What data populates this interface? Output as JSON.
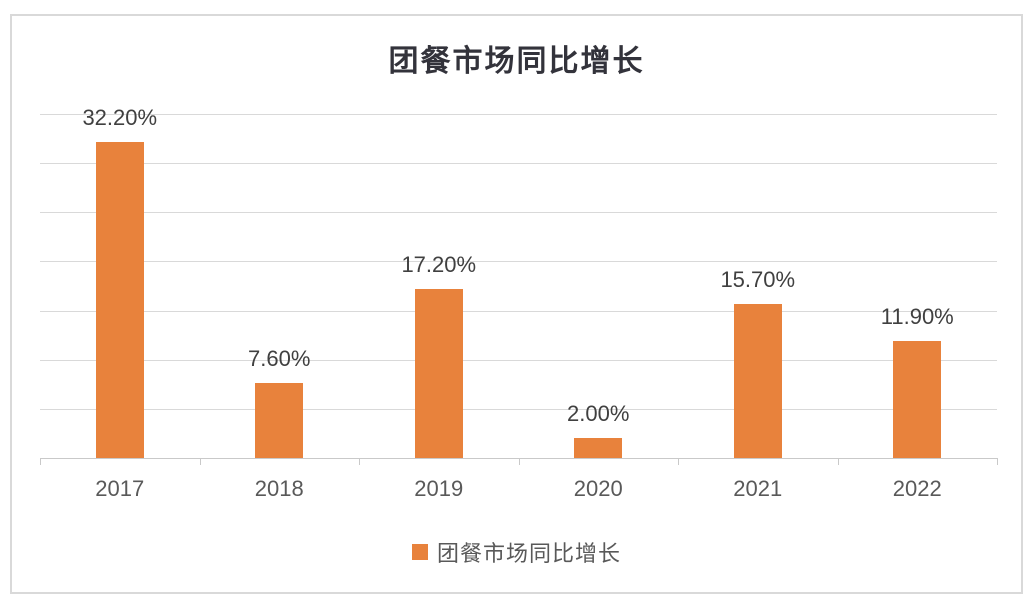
{
  "chart_data": {
    "type": "bar",
    "title": "团餐市场同比增长",
    "categories": [
      "2017",
      "2018",
      "2019",
      "2020",
      "2021",
      "2022"
    ],
    "series": [
      {
        "name": "团餐市场同比增长",
        "values": [
          32.2,
          7.6,
          17.2,
          2.0,
          15.7,
          11.9
        ],
        "labels": [
          "32.20%",
          "7.60%",
          "17.20%",
          "2.00%",
          "15.70%",
          "11.90%"
        ]
      }
    ],
    "xlabel": "",
    "ylabel": "",
    "ylim": [
      0,
      35
    ],
    "gridline_step": 5,
    "grid": true,
    "legend_position": "bottom"
  },
  "legend": {
    "label": "团餐市场同比增长"
  },
  "colors": {
    "bar": "#E8823C",
    "gridline": "#D9D9D9",
    "axis_line": "#C9C9C9",
    "data_label": "#404040",
    "axis_text": "#595959",
    "title_text": "#33333B",
    "frame_border": "#D9D9D9",
    "background": "#FFFFFF"
  }
}
